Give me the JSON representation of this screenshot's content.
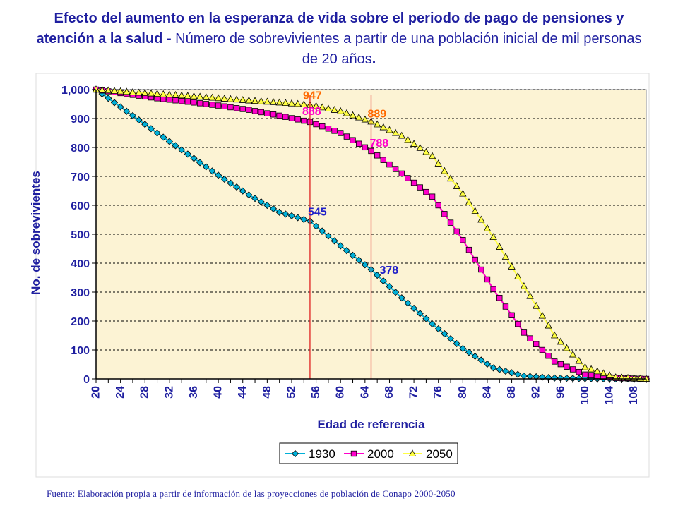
{
  "title": {
    "bold": "Efecto del aumento en la esperanza de vida sobre el periodo de pago de pensiones y atención a la salud - ",
    "normal": "Número de sobrevivientes a partir de una población inicial de mil personas de 20 años",
    "end": "."
  },
  "source": "Fuente: Elaboración propia a partir de información de las proyecciones de población de Conapo 2000-2050",
  "colors": {
    "s1930": "#00b0d8",
    "s2000": "#ff00cc",
    "s2050": "#ffff44",
    "plot_bg": "#fcf3d4",
    "axis_text": "#1f1fa0",
    "vline": "#e02020",
    "label_orange": "#ff6a00",
    "label_pink": "#ff00cc",
    "label_blue": "#2020c8"
  },
  "chart_data": {
    "type": "line",
    "xlabel": "Edad de referencia",
    "ylabel": "No. de sobrevivientes",
    "xlim": [
      20,
      110
    ],
    "ylim": [
      0,
      1000
    ],
    "xticks": [
      20,
      24,
      28,
      32,
      36,
      40,
      44,
      48,
      52,
      56,
      60,
      64,
      68,
      72,
      76,
      80,
      84,
      88,
      92,
      96,
      100,
      104,
      108
    ],
    "yticks": [
      0,
      100,
      200,
      300,
      400,
      500,
      600,
      700,
      800,
      900,
      1000
    ],
    "ytick_labels": [
      "0",
      "100",
      "200",
      "300",
      "400",
      "500",
      "600",
      "700",
      "800",
      "900",
      "1,000"
    ],
    "grid": "horizontal-dashed",
    "legend": "bottom",
    "vertical_lines": [
      55,
      65
    ],
    "series": [
      {
        "name": "1930",
        "x": [
          20,
          25,
          30,
          35,
          40,
          45,
          50,
          55,
          60,
          65,
          70,
          75,
          80,
          85,
          90,
          95,
          100,
          105,
          110
        ],
        "values": [
          1000,
          925,
          850,
          777,
          704,
          636,
          576,
          545,
          460,
          378,
          280,
          190,
          105,
          38,
          10,
          3,
          1,
          0,
          0
        ]
      },
      {
        "name": "2000",
        "x": [
          20,
          25,
          30,
          35,
          40,
          45,
          50,
          55,
          60,
          65,
          70,
          75,
          80,
          85,
          90,
          95,
          100,
          105,
          110
        ],
        "values": [
          1000,
          985,
          970,
          958,
          945,
          930,
          910,
          888,
          850,
          788,
          710,
          630,
          480,
          310,
          160,
          60,
          15,
          3,
          0
        ]
      },
      {
        "name": "2050",
        "x": [
          20,
          25,
          30,
          35,
          40,
          45,
          50,
          55,
          60,
          65,
          70,
          75,
          80,
          85,
          90,
          95,
          100,
          105,
          110
        ],
        "values": [
          1000,
          992,
          985,
          978,
          970,
          962,
          955,
          947,
          925,
          889,
          840,
          770,
          640,
          490,
          320,
          150,
          40,
          5,
          0
        ]
      }
    ],
    "annotations": [
      {
        "text": "947",
        "x": 55,
        "y": 947,
        "color": "label_orange"
      },
      {
        "text": "889",
        "x": 65,
        "y": 889,
        "color": "label_orange"
      },
      {
        "text": "888",
        "x": 55,
        "y": 888,
        "color": "label_pink"
      },
      {
        "text": "788",
        "x": 65,
        "y": 788,
        "color": "label_pink"
      },
      {
        "text": "545",
        "x": 55,
        "y": 545,
        "color": "label_blue"
      },
      {
        "text": "378",
        "x": 65,
        "y": 378,
        "color": "label_blue"
      }
    ]
  }
}
